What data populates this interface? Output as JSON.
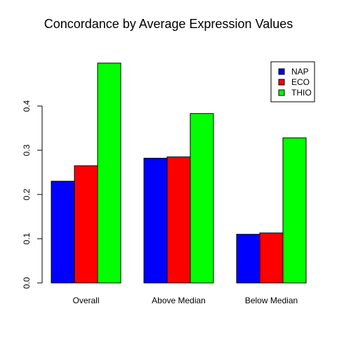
{
  "chart_data": {
    "type": "bar",
    "title": "Concordance by Average Expression Values",
    "xlabel": "",
    "ylabel": "",
    "categories": [
      "Overall",
      "Above Median",
      "Below Median"
    ],
    "series": [
      {
        "name": "NAP",
        "color": "#0000FF",
        "values": [
          0.23,
          0.282,
          0.11
        ]
      },
      {
        "name": "ECO",
        "color": "#FF0000",
        "values": [
          0.265,
          0.285,
          0.113
        ]
      },
      {
        "name": "THIO",
        "color": "#00FF00",
        "values": [
          0.497,
          0.383,
          0.328
        ]
      }
    ],
    "ylim": [
      0,
      0.5
    ],
    "yticks": [
      "0.0",
      "0.1",
      "0.2",
      "0.3",
      "0.4"
    ],
    "grid": false,
    "legend_position": "top-right"
  }
}
